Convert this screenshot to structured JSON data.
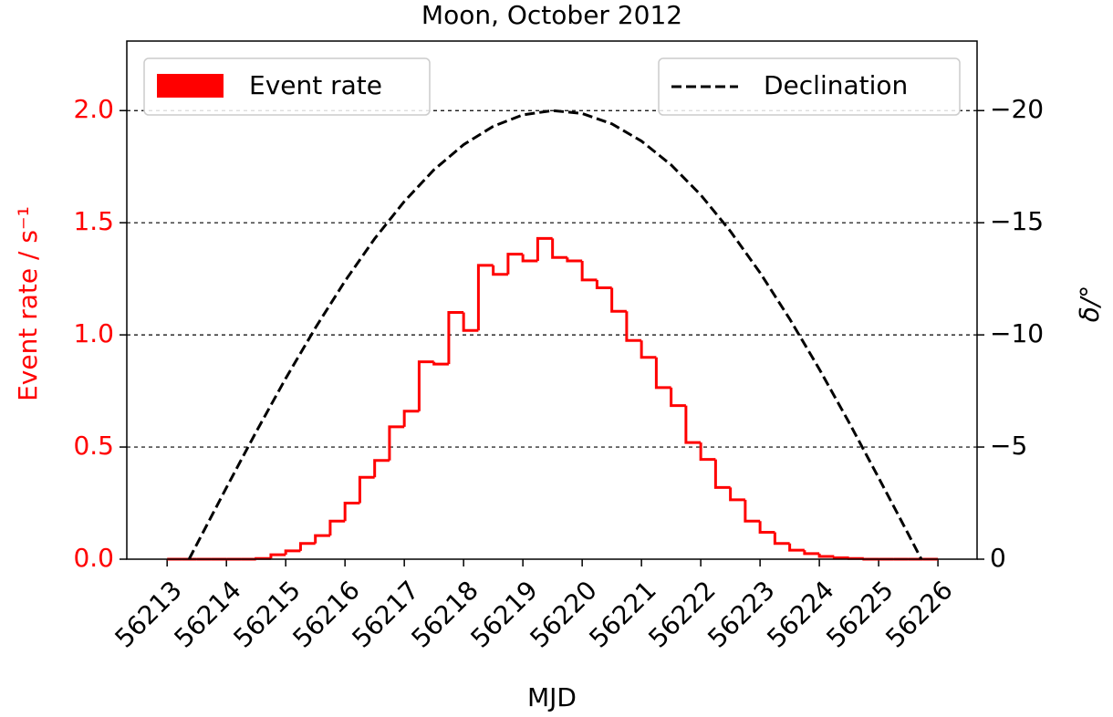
{
  "chart_data": {
    "type": "histogram",
    "title": "Moon, October 2012",
    "xlabel": "MJD",
    "ylabel": "Event rate / s⁻¹",
    "y2label": "δ/°",
    "bins": [
      56213,
      56213.25,
      56213.5,
      56213.75,
      56214,
      56214.25,
      56214.5,
      56214.75,
      56215,
      56215.25,
      56215.5,
      56215.75,
      56216,
      56216.25,
      56216.5,
      56216.75,
      56217,
      56217.25,
      56217.5,
      56217.75,
      56218,
      56218.25,
      56218.5,
      56218.75,
      56219,
      56219.25,
      56219.5,
      56219.75,
      56220,
      56220.25,
      56220.5,
      56220.75,
      56221,
      56221.25,
      56221.5,
      56221.75,
      56222,
      56222.25,
      56222.5,
      56222.75,
      56223,
      56223.25,
      56223.5,
      56223.75,
      56224,
      56224.25,
      56224.5,
      56224.75,
      56225,
      56225.25,
      56225.5,
      56225.75,
      56226
    ],
    "series": [
      {
        "name": "Event rate",
        "color": "#ff0000",
        "values": [
          0,
          0,
          0,
          0,
          0,
          0,
          0.003,
          0.02,
          0.037,
          0.07,
          0.105,
          0.17,
          0.25,
          0.365,
          0.44,
          0.59,
          0.66,
          0.88,
          0.87,
          1.1,
          1.02,
          1.31,
          1.27,
          1.36,
          1.33,
          1.43,
          1.345,
          1.33,
          1.245,
          1.21,
          1.105,
          0.975,
          0.9,
          0.765,
          0.685,
          0.52,
          0.445,
          0.32,
          0.265,
          0.17,
          0.12,
          0.07,
          0.04,
          0.025,
          0.012,
          0.006,
          0.003,
          0,
          0,
          0,
          0,
          0
        ]
      },
      {
        "name": "Declination",
        "color": "#000000",
        "axis": "y2",
        "type": "line",
        "x": [
          56213.37,
          56213.5,
          56214,
          56214.5,
          56215,
          56215.5,
          56216,
          56216.5,
          56217,
          56217.5,
          56218,
          56218.5,
          56219,
          56219.5,
          56220,
          56220.5,
          56221,
          56221.5,
          56222,
          56222.5,
          56223,
          56223.5,
          56224,
          56224.5,
          56225,
          56225.5,
          56225.72
        ],
        "values": [
          0,
          -0.66,
          -3.19,
          -5.67,
          -8.06,
          -10.31,
          -12.4,
          -14.29,
          -15.95,
          -17.36,
          -18.48,
          -19.3,
          -19.81,
          -20,
          -19.87,
          -19.41,
          -18.64,
          -17.58,
          -16.24,
          -14.62,
          -12.77,
          -10.71,
          -8.47,
          -6.1,
          -3.63,
          -1.12,
          0
        ]
      }
    ],
    "xlim": [
      56212.32,
      56226.66
    ],
    "xticks": [
      56213,
      56214,
      56215,
      56216,
      56217,
      56218,
      56219,
      56220,
      56221,
      56222,
      56223,
      56224,
      56225,
      56226
    ],
    "ylim": [
      0,
      2.31
    ],
    "yticks": [
      {
        "value": 0,
        "label": "0.0"
      },
      {
        "value": 0.5,
        "label": "0.5"
      },
      {
        "value": 1,
        "label": "1.0"
      },
      {
        "value": 1.5,
        "label": "1.5"
      },
      {
        "value": 2,
        "label": "2.0"
      }
    ],
    "y2lim": [
      0,
      -23.1
    ],
    "y2ticks": [
      0,
      {
        "value": -5,
        "label": "−5"
      },
      {
        "value": -10,
        "label": "−10"
      },
      {
        "value": -15,
        "label": "−15"
      },
      {
        "value": -20,
        "label": "−20"
      }
    ],
    "grid": true,
    "legend": "split"
  }
}
